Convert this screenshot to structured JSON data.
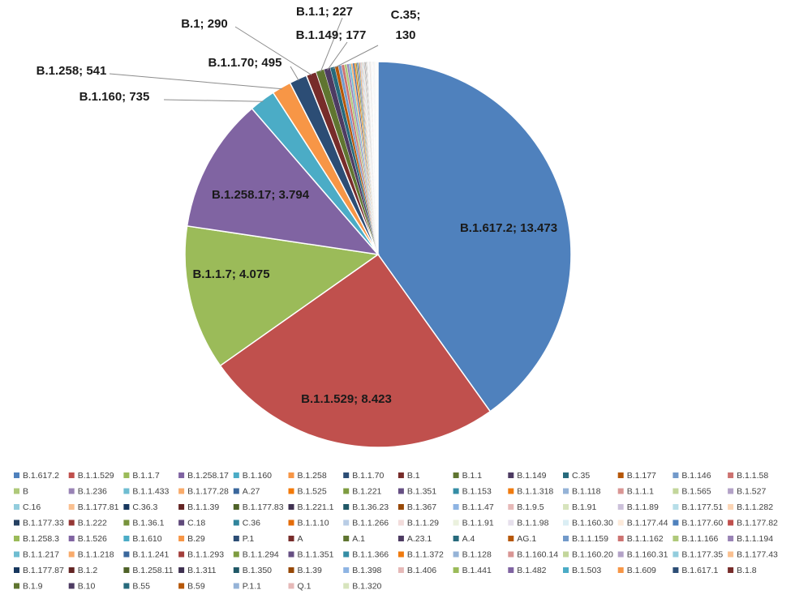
{
  "chart_data": {
    "type": "pie",
    "title": "",
    "legend_placement": "bottom",
    "slices": [
      {
        "label": "B.1.617.2",
        "value": 13473,
        "data_label": "B.1.617.2; 13.473",
        "color": "#4F81BD"
      },
      {
        "label": "B.1.1.529",
        "value": 8423,
        "data_label": "B.1.1.529; 8.423",
        "color": "#C0504D"
      },
      {
        "label": "B.1.1.7",
        "value": 4075,
        "data_label": "B.1.1.7; 4.075",
        "color": "#9BBB59"
      },
      {
        "label": "B.1.258.17",
        "value": 3794,
        "data_label": "B.1.258.17; 3.794",
        "color": "#8064A2"
      },
      {
        "label": "B.1.160",
        "value": 735,
        "data_label": "B.1.160; 735",
        "color": "#4BACC6"
      },
      {
        "label": "B.1.258",
        "value": 541,
        "data_label": "B.1.258; 541",
        "color": "#F79646"
      },
      {
        "label": "B.1.1.70",
        "value": 495,
        "data_label": "B.1.1.70; 495",
        "color": "#2C4D75"
      },
      {
        "label": "B.1",
        "value": 290,
        "data_label": "B.1; 290",
        "color": "#772C2A"
      },
      {
        "label": "B.1.1",
        "value": 227,
        "data_label": "B.1.1; 227",
        "color": "#5F7530"
      },
      {
        "label": "B.1.149",
        "value": 177,
        "data_label": "B.1.149; 177",
        "color": "#4D3B62"
      },
      {
        "label": "C.35",
        "value": 130,
        "data_label": "C.35; 130",
        "color": "#276A7C"
      },
      {
        "label": "B.1.177",
        "value": 100,
        "color": "#B65708"
      },
      {
        "label": "B.1.146",
        "value": 90,
        "color": "#729ACA"
      },
      {
        "label": "B.1.1.58",
        "value": 80,
        "color": "#CD7371"
      },
      {
        "label": "B",
        "value": 70,
        "color": "#AFC97A"
      },
      {
        "label": "B.1.236",
        "value": 60,
        "color": "#9983B5"
      },
      {
        "label": "B.1.1.433",
        "value": 55,
        "color": "#6FBDD1"
      },
      {
        "label": "B.1.177.28",
        "value": 50,
        "color": "#F9AB6B"
      },
      {
        "label": "A.27",
        "value": 45,
        "color": "#3A679C"
      },
      {
        "label": "B.1.525",
        "value": 40,
        "color": "#F37A08"
      },
      {
        "label": "B.1.221",
        "value": 35,
        "color": "#7E9C40"
      },
      {
        "label": "B.1.351",
        "value": 30,
        "color": "#664F83"
      },
      {
        "label": "B.1.153",
        "value": 28,
        "color": "#358DA5"
      },
      {
        "label": "B.1.1.318",
        "value": 26,
        "color": "#F07B0F"
      },
      {
        "label": "B.1.118",
        "value": 24,
        "color": "#95B3D7"
      },
      {
        "label": "B.1.1.1",
        "value": 22,
        "color": "#D99694"
      },
      {
        "label": "B.1.565",
        "value": 20,
        "color": "#C3D69B"
      },
      {
        "label": "B.1.527",
        "value": 19,
        "color": "#B3A2C7"
      },
      {
        "label": "C.16",
        "value": 18,
        "color": "#93CDDD"
      },
      {
        "label": "B.1.177.81",
        "value": 17,
        "color": "#FAC090"
      },
      {
        "label": "C.36.3",
        "value": 16,
        "color": "#17375E"
      },
      {
        "label": "B.1.1.39",
        "value": 15,
        "color": "#632423"
      },
      {
        "label": "B.1.177.83",
        "value": 14,
        "color": "#4F6228"
      },
      {
        "label": "B.1.221.1",
        "value": 13,
        "color": "#3F3151"
      },
      {
        "label": "B.1.36.23",
        "value": 12,
        "color": "#205867"
      },
      {
        "label": "B.1.367",
        "value": 12,
        "color": "#974806"
      },
      {
        "label": "B.1.1.47",
        "value": 11,
        "color": "#8EB4E3"
      },
      {
        "label": "B.1.9.5",
        "value": 11,
        "color": "#E6B9B8"
      },
      {
        "label": "B.1.91",
        "value": 10,
        "color": "#D7E4BD"
      },
      {
        "label": "B.1.1.89",
        "value": 10,
        "color": "#CCC1DA"
      },
      {
        "label": "B.1.177.51",
        "value": 10,
        "color": "#B7DEE8"
      },
      {
        "label": "B.1.1.282",
        "value": 9,
        "color": "#FCD5B5"
      },
      {
        "label": "B.1.177.33",
        "value": 9,
        "color": "#254061"
      },
      {
        "label": "B.1.222",
        "value": 9,
        "color": "#953735"
      },
      {
        "label": "B.1.36.1",
        "value": 8,
        "color": "#77933C"
      },
      {
        "label": "C.18",
        "value": 8,
        "color": "#604A7B"
      },
      {
        "label": "C.36",
        "value": 8,
        "color": "#31859C"
      },
      {
        "label": "B.1.1.10",
        "value": 8,
        "color": "#E46C0A"
      },
      {
        "label": "B.1.1.266",
        "value": 7,
        "color": "#B9CDE5"
      },
      {
        "label": "B.1.1.29",
        "value": 7,
        "color": "#F2DCDB"
      },
      {
        "label": "B.1.1.91",
        "value": 7,
        "color": "#EBF1DE"
      },
      {
        "label": "B.1.1.98",
        "value": 7,
        "color": "#E6E0EC"
      },
      {
        "label": "B.1.160.30",
        "value": 6,
        "color": "#DBEEF4"
      },
      {
        "label": "B.1.177.44",
        "value": 6,
        "color": "#FDEADA"
      },
      {
        "label": "B.1.177.60",
        "value": 6,
        "color": "#4F81BD"
      },
      {
        "label": "B.1.177.82",
        "value": 6,
        "color": "#C0504D"
      },
      {
        "label": "B.1.258.3",
        "value": 6,
        "color": "#9BBB59"
      },
      {
        "label": "B.1.526",
        "value": 5,
        "color": "#8064A2"
      },
      {
        "label": "B.1.610",
        "value": 5,
        "color": "#4BACC6"
      },
      {
        "label": "B.29",
        "value": 5,
        "color": "#F79646"
      },
      {
        "label": "P.1",
        "value": 5,
        "color": "#2C4D75"
      },
      {
        "label": "A",
        "value": 5,
        "color": "#772C2A"
      },
      {
        "label": "A.1",
        "value": 5,
        "color": "#5F7530"
      },
      {
        "label": "A.23.1",
        "value": 4,
        "color": "#4D3B62"
      },
      {
        "label": "A.4",
        "value": 4,
        "color": "#276A7C"
      },
      {
        "label": "AG.1",
        "value": 4,
        "color": "#B65708"
      },
      {
        "label": "B.1.1.159",
        "value": 4,
        "color": "#729ACA"
      },
      {
        "label": "B.1.1.162",
        "value": 4,
        "color": "#CD7371"
      },
      {
        "label": "B.1.1.166",
        "value": 4,
        "color": "#AFC97A"
      },
      {
        "label": "B.1.1.194",
        "value": 4,
        "color": "#9983B5"
      },
      {
        "label": "B.1.1.217",
        "value": 3,
        "color": "#6FBDD1"
      },
      {
        "label": "B.1.1.218",
        "value": 3,
        "color": "#F9AB6B"
      },
      {
        "label": "B.1.1.241",
        "value": 3,
        "color": "#3A679C"
      },
      {
        "label": "B.1.1.293",
        "value": 3,
        "color": "#A33F3C"
      },
      {
        "label": "B.1.1.294",
        "value": 3,
        "color": "#7E9C40"
      },
      {
        "label": "B.1.1.351",
        "value": 3,
        "color": "#664F83"
      },
      {
        "label": "B.1.1.366",
        "value": 3,
        "color": "#358DA5"
      },
      {
        "label": "B.1.1.372",
        "value": 3,
        "color": "#F07B0F"
      },
      {
        "label": "B.1.128",
        "value": 3,
        "color": "#95B3D7"
      },
      {
        "label": "B.1.160.14",
        "value": 3,
        "color": "#D99694"
      },
      {
        "label": "B.1.160.20",
        "value": 3,
        "color": "#C3D69B"
      },
      {
        "label": "B.1.160.31",
        "value": 2,
        "color": "#B3A2C7"
      },
      {
        "label": "B.1.177.35",
        "value": 2,
        "color": "#93CDDD"
      },
      {
        "label": "B.1.177.43",
        "value": 2,
        "color": "#FAC090"
      },
      {
        "label": "B.1.177.87",
        "value": 2,
        "color": "#17375E"
      },
      {
        "label": "B.1.2",
        "value": 2,
        "color": "#632423"
      },
      {
        "label": "B.1.258.11",
        "value": 2,
        "color": "#4F6228"
      },
      {
        "label": "B.1.311",
        "value": 2,
        "color": "#3F3151"
      },
      {
        "label": "B.1.350",
        "value": 2,
        "color": "#205867"
      },
      {
        "label": "B.1.39",
        "value": 2,
        "color": "#974806"
      },
      {
        "label": "B.1.398",
        "value": 2,
        "color": "#8EB4E3"
      },
      {
        "label": "B.1.406",
        "value": 2,
        "color": "#E6B9B8"
      },
      {
        "label": "B.1.441",
        "value": 2,
        "color": "#9BBB59"
      },
      {
        "label": "B.1.482",
        "value": 2,
        "color": "#8064A2"
      },
      {
        "label": "B.1.503",
        "value": 2,
        "color": "#4BACC6"
      },
      {
        "label": "B.1.609",
        "value": 2,
        "color": "#F79646"
      },
      {
        "label": "B.1.617.1",
        "value": 2,
        "color": "#2C4D75"
      },
      {
        "label": "B.1.8",
        "value": 1,
        "color": "#772C2A"
      },
      {
        "label": "B.1.9",
        "value": 1,
        "color": "#5F7530"
      },
      {
        "label": "B.10",
        "value": 1,
        "color": "#4D3B62"
      },
      {
        "label": "B.55",
        "value": 1,
        "color": "#276A7C"
      },
      {
        "label": "B.59",
        "value": 1,
        "color": "#B65708"
      },
      {
        "label": "P.1.1",
        "value": 1,
        "color": "#95B3D7"
      },
      {
        "label": "Q.1",
        "value": 1,
        "color": "#E6B9B8"
      },
      {
        "label": "B.1.320",
        "value": 1,
        "color": "#D7E4BD"
      }
    ]
  }
}
